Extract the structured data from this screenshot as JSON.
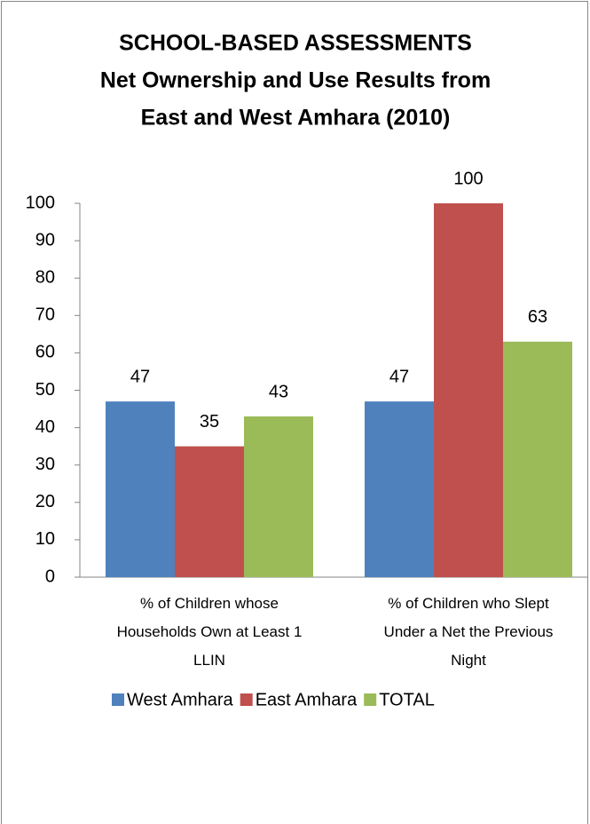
{
  "chart_data": {
    "type": "bar",
    "title": [
      "SCHOOL-BASED ASSESSMENTS",
      "Net Ownership and Use Results from",
      "East and West Amhara (2010)"
    ],
    "categories": [
      "% of Children  whose Households Own at Least 1 LLIN",
      "% of Children who Slept Under a Net the Previous Night"
    ],
    "series": [
      {
        "name": "West Amhara",
        "color": "#4f81bd",
        "values": [
          47,
          47
        ]
      },
      {
        "name": "East Amhara",
        "color": "#c0504d",
        "values": [
          35,
          100
        ]
      },
      {
        "name": "TOTAL",
        "color": "#9bbb59",
        "values": [
          43,
          63
        ]
      }
    ],
    "ylim": [
      0,
      100
    ],
    "yticks": [
      0,
      10,
      20,
      30,
      40,
      50,
      60,
      70,
      80,
      90,
      100
    ],
    "grid": false,
    "legend": "bottom"
  }
}
